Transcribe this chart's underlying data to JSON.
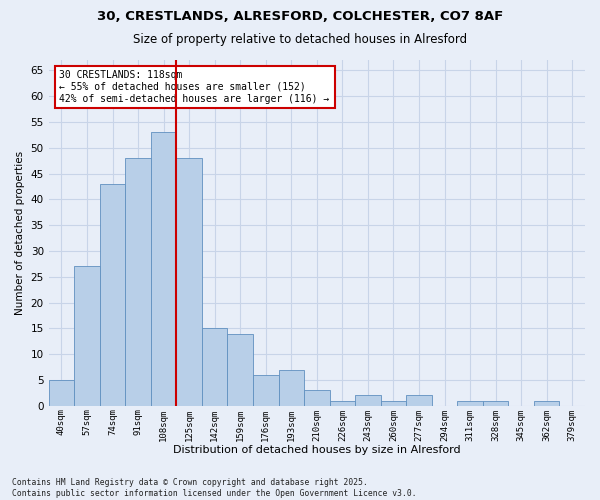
{
  "title1": "30, CRESTLANDS, ALRESFORD, COLCHESTER, CO7 8AF",
  "title2": "Size of property relative to detached houses in Alresford",
  "xlabel": "Distribution of detached houses by size in Alresford",
  "ylabel": "Number of detached properties",
  "categories": [
    "40sqm",
    "57sqm",
    "74sqm",
    "91sqm",
    "108sqm",
    "125sqm",
    "142sqm",
    "159sqm",
    "176sqm",
    "193sqm",
    "210sqm",
    "226sqm",
    "243sqm",
    "260sqm",
    "277sqm",
    "294sqm",
    "311sqm",
    "328sqm",
    "345sqm",
    "362sqm",
    "379sqm"
  ],
  "values": [
    5,
    27,
    43,
    48,
    53,
    48,
    15,
    14,
    6,
    7,
    3,
    1,
    2,
    1,
    2,
    0,
    1,
    1,
    0,
    1,
    0
  ],
  "bar_color": "#b8cfe8",
  "bar_edge_color": "#6090c0",
  "grid_color": "#c8d4e8",
  "bg_color": "#e8eef8",
  "vline_x": 4.5,
  "vline_color": "#cc0000",
  "annotation_text": "30 CRESTLANDS: 118sqm\n← 55% of detached houses are smaller (152)\n42% of semi-detached houses are larger (116) →",
  "annotation_box_color": "#ffffff",
  "annotation_box_edge": "#cc0000",
  "footer": "Contains HM Land Registry data © Crown copyright and database right 2025.\nContains public sector information licensed under the Open Government Licence v3.0.",
  "ylim": [
    0,
    67
  ],
  "yticks": [
    0,
    5,
    10,
    15,
    20,
    25,
    30,
    35,
    40,
    45,
    50,
    55,
    60,
    65
  ]
}
